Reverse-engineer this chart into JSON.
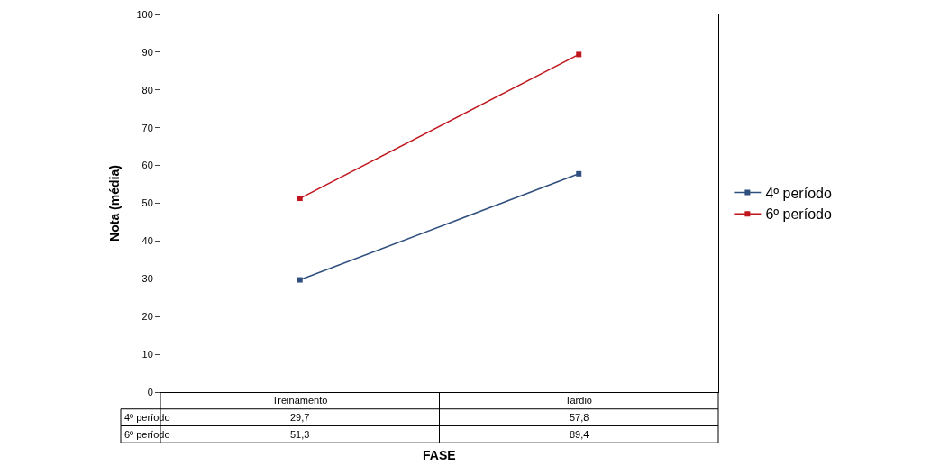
{
  "chart_data": {
    "type": "line",
    "xlabel": "FASE",
    "ylabel": "Nota (média)",
    "categories": [
      "Treinamento",
      "Tardio"
    ],
    "series": [
      {
        "name": "4º período",
        "color": "#2f4f7f",
        "values": [
          29.7,
          57.8
        ],
        "value_labels": [
          "29,7",
          "57,8"
        ]
      },
      {
        "name": "6º período",
        "color": "#c0171e",
        "values": [
          51.3,
          89.4
        ],
        "value_labels": [
          "51,3",
          "89,4"
        ]
      }
    ],
    "ylim": [
      0,
      100
    ],
    "yticks": [
      0,
      10,
      20,
      30,
      40,
      50,
      60,
      70,
      80,
      90,
      100
    ],
    "legend": "right",
    "marker": "square",
    "line_style": "solid"
  }
}
